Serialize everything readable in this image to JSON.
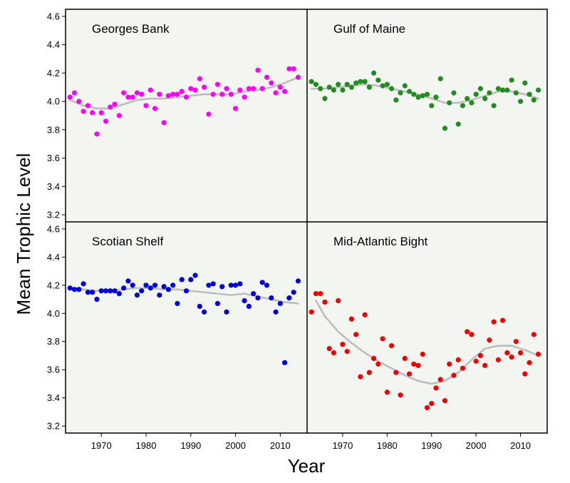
{
  "chart_data": {
    "type": "scatter",
    "xlabel": "Year",
    "ylabel": "Mean Trophic Level",
    "xlim": [
      1962,
      2016
    ],
    "ylim": [
      3.15,
      4.65
    ],
    "xticks": [
      1970,
      1980,
      1990,
      2000,
      2010
    ],
    "yticks": [
      3.2,
      3.4,
      3.6,
      3.8,
      4.0,
      4.2,
      4.4,
      4.6
    ],
    "grid": false,
    "background_color": "#f3f5f1",
    "trend_color": "#bdbdbd",
    "panels": [
      {
        "title": "Georges Bank",
        "color": "#ff00ff",
        "points": {
          "x": [
            1963,
            1964,
            1965,
            1966,
            1967,
            1968,
            1969,
            1970,
            1971,
            1972,
            1973,
            1974,
            1975,
            1976,
            1977,
            1978,
            1979,
            1980,
            1981,
            1982,
            1983,
            1984,
            1985,
            1986,
            1987,
            1988,
            1989,
            1990,
            1991,
            1992,
            1993,
            1994,
            1995,
            1996,
            1997,
            1998,
            1999,
            2000,
            2001,
            2002,
            2003,
            2004,
            2005,
            2006,
            2007,
            2008,
            2009,
            2010,
            2011,
            2012,
            2013,
            2014
          ],
          "y": [
            4.03,
            4.06,
            4.0,
            3.93,
            3.97,
            3.92,
            3.77,
            3.92,
            3.86,
            3.96,
            3.98,
            3.9,
            4.06,
            4.03,
            4.03,
            4.06,
            4.05,
            3.97,
            4.08,
            3.95,
            4.05,
            3.85,
            4.04,
            4.05,
            4.05,
            4.07,
            4.03,
            4.09,
            4.08,
            4.16,
            4.1,
            3.91,
            4.05,
            4.12,
            4.05,
            4.09,
            4.05,
            3.95,
            4.08,
            4.03,
            4.09,
            4.09,
            4.22,
            4.09,
            4.17,
            4.13,
            4.06,
            4.1,
            4.07,
            4.23,
            4.23,
            4.17
          ]
        },
        "trend": {
          "x": [
            1963,
            1966,
            1969,
            1972,
            1975,
            1978,
            1981,
            1984,
            1987,
            1990,
            1993,
            1996,
            1999,
            2002,
            2005,
            2008,
            2011,
            2014
          ],
          "y": [
            4.01,
            3.97,
            3.95,
            3.95,
            3.98,
            4.01,
            4.02,
            4.02,
            4.03,
            4.04,
            4.05,
            4.05,
            4.05,
            4.07,
            4.08,
            4.1,
            4.13,
            4.17
          ]
        }
      },
      {
        "title": "Gulf of Maine",
        "color": "#228b22",
        "points": {
          "x": [
            1963,
            1964,
            1965,
            1966,
            1967,
            1968,
            1969,
            1970,
            1971,
            1972,
            1973,
            1974,
            1975,
            1976,
            1977,
            1978,
            1979,
            1980,
            1981,
            1982,
            1983,
            1984,
            1985,
            1986,
            1987,
            1988,
            1989,
            1990,
            1991,
            1992,
            1993,
            1994,
            1995,
            1996,
            1997,
            1998,
            1999,
            2000,
            2001,
            2002,
            2003,
            2004,
            2005,
            2006,
            2007,
            2008,
            2009,
            2010,
            2011,
            2012,
            2013,
            2014
          ],
          "y": [
            4.14,
            4.12,
            4.09,
            4.02,
            4.1,
            4.08,
            4.12,
            4.08,
            4.12,
            4.1,
            4.13,
            4.14,
            4.14,
            4.1,
            4.2,
            4.15,
            4.11,
            4.12,
            4.09,
            4.01,
            4.06,
            4.11,
            4.07,
            4.05,
            4.03,
            4.04,
            4.05,
            3.97,
            4.03,
            4.16,
            3.81,
            3.99,
            4.06,
            3.84,
            3.97,
            4.02,
            3.99,
            4.05,
            4.09,
            4.02,
            4.06,
            3.97,
            4.09,
            4.08,
            4.08,
            4.15,
            4.06,
            4.0,
            4.13,
            4.05,
            4.01,
            4.08
          ]
        },
        "trend": {
          "x": [
            1963,
            1966,
            1969,
            1972,
            1975,
            1978,
            1981,
            1984,
            1987,
            1990,
            1993,
            1996,
            1999,
            2002,
            2005,
            2008,
            2011,
            2014
          ],
          "y": [
            4.09,
            4.09,
            4.1,
            4.11,
            4.12,
            4.11,
            4.09,
            4.07,
            4.05,
            4.02,
            3.99,
            3.99,
            4.01,
            4.04,
            4.07,
            4.07,
            4.05,
            4.02
          ]
        }
      },
      {
        "title": "Scotian Shelf",
        "color": "#0000dd",
        "points": {
          "x": [
            1963,
            1964,
            1965,
            1966,
            1967,
            1968,
            1969,
            1970,
            1971,
            1972,
            1973,
            1974,
            1975,
            1976,
            1977,
            1978,
            1979,
            1980,
            1981,
            1982,
            1983,
            1984,
            1985,
            1986,
            1987,
            1988,
            1989,
            1990,
            1991,
            1992,
            1993,
            1994,
            1995,
            1996,
            1997,
            1998,
            1999,
            2000,
            2001,
            2002,
            2003,
            2004,
            2005,
            2006,
            2007,
            2008,
            2009,
            2010,
            2011,
            2012,
            2013,
            2014
          ],
          "y": [
            4.18,
            4.17,
            4.17,
            4.21,
            4.15,
            4.15,
            4.1,
            4.16,
            4.16,
            4.16,
            4.16,
            4.14,
            4.18,
            4.23,
            4.2,
            4.13,
            4.16,
            4.2,
            4.18,
            4.2,
            4.13,
            4.19,
            4.17,
            4.2,
            4.07,
            4.24,
            4.16,
            4.24,
            4.27,
            4.05,
            4.01,
            4.2,
            4.21,
            4.07,
            4.19,
            4.01,
            4.2,
            4.2,
            4.21,
            4.09,
            4.05,
            4.14,
            4.11,
            4.22,
            4.2,
            4.11,
            4.01,
            4.07,
            3.65,
            4.11,
            4.15,
            4.23
          ]
        },
        "trend": {
          "x": [
            1963,
            1966,
            1969,
            1972,
            1975,
            1978,
            1981,
            1984,
            1987,
            1990,
            1993,
            1996,
            1999,
            2002,
            2005,
            2008,
            2011,
            2014
          ],
          "y": [
            4.18,
            4.17,
            4.16,
            4.16,
            4.17,
            4.18,
            4.18,
            4.17,
            4.17,
            4.16,
            4.15,
            4.14,
            4.13,
            4.14,
            4.12,
            4.1,
            4.08,
            4.07
          ]
        }
      },
      {
        "title": "Mid-Atlantic Bight",
        "color": "#ee0000",
        "points": {
          "x": [
            1963,
            1964,
            1965,
            1966,
            1967,
            1968,
            1969,
            1970,
            1971,
            1972,
            1973,
            1974,
            1975,
            1976,
            1977,
            1978,
            1979,
            1980,
            1981,
            1982,
            1983,
            1984,
            1985,
            1986,
            1987,
            1988,
            1989,
            1990,
            1991,
            1992,
            1993,
            1994,
            1995,
            1996,
            1997,
            1998,
            1999,
            2000,
            2001,
            2002,
            2003,
            2004,
            2005,
            2006,
            2007,
            2008,
            2009,
            2010,
            2011,
            2012,
            2013,
            2014
          ],
          "y": [
            4.01,
            4.14,
            4.14,
            4.08,
            3.75,
            3.72,
            4.09,
            3.78,
            3.73,
            3.96,
            3.85,
            3.55,
            3.99,
            3.58,
            3.68,
            3.64,
            3.82,
            3.44,
            3.77,
            3.58,
            3.42,
            3.68,
            3.57,
            3.64,
            3.63,
            3.71,
            3.33,
            3.36,
            3.47,
            3.53,
            3.38,
            3.64,
            3.56,
            3.67,
            3.61,
            3.87,
            3.85,
            3.66,
            3.7,
            3.63,
            3.81,
            3.94,
            3.67,
            3.95,
            3.72,
            3.69,
            3.8,
            3.72,
            3.57,
            3.65,
            3.85,
            3.71
          ]
        },
        "trend": {
          "x": [
            1964,
            1966,
            1969,
            1972,
            1975,
            1978,
            1981,
            1984,
            1987,
            1990,
            1993,
            1996,
            1999,
            2002,
            2005,
            2008,
            2011,
            2014
          ],
          "y": [
            4.09,
            3.98,
            3.87,
            3.79,
            3.72,
            3.66,
            3.61,
            3.56,
            3.52,
            3.5,
            3.52,
            3.58,
            3.67,
            3.75,
            3.77,
            3.77,
            3.74,
            3.7
          ]
        }
      }
    ]
  }
}
